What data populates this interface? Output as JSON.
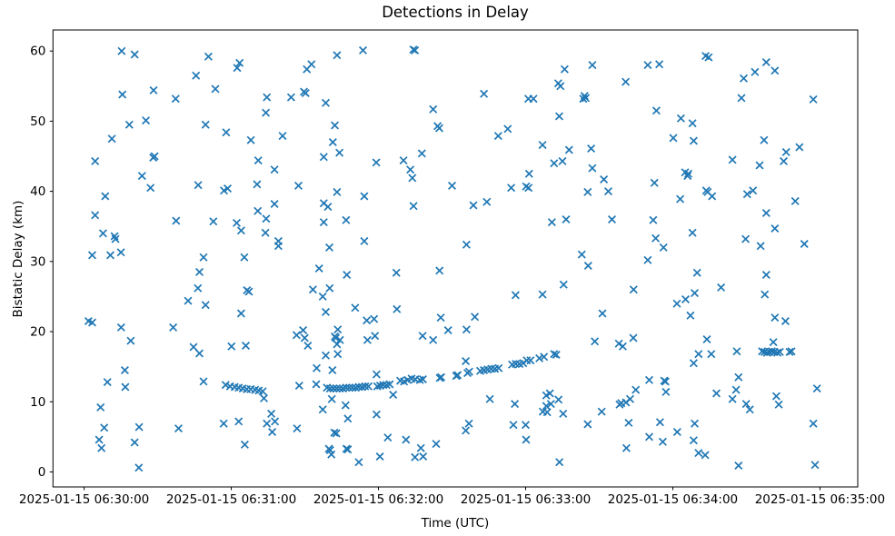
{
  "chart": {
    "title": "Detections in Delay",
    "xlabel": "Time (UTC)",
    "ylabel": "Bistatic Delay (km)"
  },
  "chart_data": {
    "type": "scatter",
    "title": "Detections in Delay",
    "xlabel": "Time (UTC)",
    "ylabel": "Bistatic Delay (km)",
    "marker": "x",
    "marker_color": "#1f77b4",
    "grid": false,
    "legend": null,
    "x_units": "seconds after 2025-01-15 06:30:00 UTC",
    "x_tick_seconds": [
      0,
      60,
      120,
      180,
      240,
      300
    ],
    "x_tick_labels": [
      "2025-01-15 06:30:00",
      "2025-01-15 06:31:00",
      "2025-01-15 06:32:00",
      "2025-01-15 06:33:00",
      "2025-01-15 06:34:00",
      "2025-01-15 06:35:00"
    ],
    "y_ticks": [
      0,
      10,
      20,
      30,
      40,
      50,
      60
    ],
    "xlim_seconds": [
      -12.7,
      315.4
    ],
    "ylim": [
      -2.14,
      63.0
    ],
    "points": [
      [
        1.8,
        21.5
      ],
      [
        3.3,
        21.3
      ],
      [
        3.3,
        30.9
      ],
      [
        4.5,
        36.6
      ],
      [
        4.5,
        44.3
      ],
      [
        6.1,
        4.6
      ],
      [
        6.7,
        9.2
      ],
      [
        7.1,
        3.4
      ],
      [
        7.7,
        34.0
      ],
      [
        8.2,
        6.3
      ],
      [
        8.6,
        39.3
      ],
      [
        9.5,
        12.8
      ],
      [
        10.7,
        30.9
      ],
      [
        11.3,
        47.5
      ],
      [
        12.4,
        33.6
      ],
      [
        12.8,
        33.2
      ],
      [
        15.0,
        31.3
      ],
      [
        15.1,
        20.6
      ],
      [
        15.3,
        60.0
      ],
      [
        15.6,
        53.8
      ],
      [
        16.6,
        14.5
      ],
      [
        16.8,
        12.1
      ],
      [
        18.4,
        49.5
      ],
      [
        19.0,
        18.7
      ],
      [
        20.6,
        4.2
      ],
      [
        20.6,
        59.5
      ],
      [
        22.3,
        0.6
      ],
      [
        22.4,
        6.4
      ],
      [
        23.6,
        42.2
      ],
      [
        25.2,
        50.1
      ],
      [
        27.1,
        40.5
      ],
      [
        28.2,
        44.8
      ],
      [
        28.7,
        45.0
      ],
      [
        28.3,
        54.4
      ],
      [
        36.3,
        20.6
      ],
      [
        37.3,
        53.2
      ],
      [
        37.5,
        35.8
      ],
      [
        38.5,
        6.2
      ],
      [
        42.4,
        24.4
      ],
      [
        44.6,
        17.8
      ],
      [
        45.6,
        56.5
      ],
      [
        46.4,
        26.2
      ],
      [
        46.5,
        40.9
      ],
      [
        47.0,
        16.9
      ],
      [
        47.0,
        28.5
      ],
      [
        48.7,
        12.9
      ],
      [
        48.7,
        30.6
      ],
      [
        49.5,
        23.8
      ],
      [
        49.5,
        49.5
      ],
      [
        50.7,
        59.2
      ],
      [
        52.7,
        35.7
      ],
      [
        53.5,
        54.6
      ],
      [
        56.9,
        6.9
      ],
      [
        57.0,
        40.1
      ],
      [
        57.9,
        48.4
      ],
      [
        58.5,
        40.4
      ],
      [
        60.1,
        17.9
      ],
      [
        62.2,
        35.5
      ],
      [
        62.4,
        57.6
      ],
      [
        63.0,
        7.2
      ],
      [
        63.4,
        58.3
      ],
      [
        64.0,
        22.6
      ],
      [
        64.0,
        34.4
      ],
      [
        65.3,
        30.6
      ],
      [
        65.5,
        3.9
      ],
      [
        65.9,
        18.0
      ],
      [
        66.4,
        25.9
      ],
      [
        67.2,
        25.7
      ],
      [
        68.0,
        47.3
      ],
      [
        57.7,
        12.4
      ],
      [
        59.5,
        12.2
      ],
      [
        61.4,
        12.1
      ],
      [
        63.0,
        12.0
      ],
      [
        64.7,
        11.9
      ],
      [
        66.3,
        11.8
      ],
      [
        67.9,
        11.8
      ],
      [
        69.7,
        11.7
      ],
      [
        71.2,
        11.6
      ],
      [
        72.8,
        11.5
      ],
      [
        73.3,
        10.5
      ],
      [
        70.5,
        41.0
      ],
      [
        70.8,
        37.2
      ],
      [
        71.0,
        44.4
      ],
      [
        73.9,
        34.1
      ],
      [
        74.1,
        51.2
      ],
      [
        74.2,
        36.1
      ],
      [
        74.5,
        53.4
      ],
      [
        77.6,
        38.2
      ],
      [
        77.6,
        43.1
      ],
      [
        79.2,
        32.2
      ],
      [
        79.2,
        32.9
      ],
      [
        80.9,
        47.9
      ],
      [
        84.4,
        53.4
      ],
      [
        87.4,
        40.8
      ],
      [
        89.6,
        54.2
      ],
      [
        90.3,
        54.0
      ],
      [
        90.8,
        57.4
      ],
      [
        92.7,
        58.1
      ],
      [
        97.7,
        35.6
      ],
      [
        97.7,
        38.3
      ],
      [
        97.7,
        44.9
      ],
      [
        98.5,
        52.6
      ],
      [
        99.4,
        37.8
      ],
      [
        100.0,
        32.0
      ],
      [
        101.4,
        47.0
      ],
      [
        102.2,
        49.4
      ],
      [
        103.1,
        39.9
      ],
      [
        103.1,
        59.4
      ],
      [
        104.1,
        45.5
      ],
      [
        106.8,
        35.9
      ],
      [
        113.7,
        60.1
      ],
      [
        114.2,
        32.9
      ],
      [
        114.2,
        39.3
      ],
      [
        119.1,
        44.1
      ],
      [
        130.2,
        44.4
      ],
      [
        133.0,
        43.1
      ],
      [
        133.8,
        41.9
      ],
      [
        134.2,
        60.2
      ],
      [
        134.9,
        60.1
      ],
      [
        134.3,
        37.9
      ],
      [
        137.7,
        45.4
      ],
      [
        142.3,
        51.7
      ],
      [
        144.1,
        49.3
      ],
      [
        144.8,
        49.0
      ],
      [
        150.0,
        40.8
      ],
      [
        74.5,
        6.9
      ],
      [
        76.3,
        8.3
      ],
      [
        76.7,
        5.7
      ],
      [
        77.8,
        7.2
      ],
      [
        86.6,
        19.5
      ],
      [
        86.8,
        6.2
      ],
      [
        89.3,
        20.2
      ],
      [
        89.9,
        19.1
      ],
      [
        91.2,
        18.0
      ],
      [
        93.3,
        26.0
      ],
      [
        94.8,
        14.8
      ],
      [
        95.8,
        29.0
      ],
      [
        97.3,
        8.9
      ],
      [
        97.3,
        25.0
      ],
      [
        98.5,
        16.6
      ],
      [
        98.5,
        22.8
      ],
      [
        99.8,
        3.3
      ],
      [
        100.3,
        3.1
      ],
      [
        100.8,
        2.5
      ],
      [
        100.1,
        26.2
      ],
      [
        101.0,
        10.4
      ],
      [
        101.2,
        14.5
      ],
      [
        102.2,
        19.3
      ],
      [
        102.6,
        19.1
      ],
      [
        103.4,
        16.8
      ],
      [
        103.4,
        20.3
      ],
      [
        103.1,
        18.2
      ],
      [
        104.3,
        18.8
      ],
      [
        102.0,
        5.6
      ],
      [
        102.8,
        5.5
      ],
      [
        106.6,
        9.5
      ],
      [
        106.9,
        3.3
      ],
      [
        107.5,
        3.2
      ],
      [
        107.1,
        28.1
      ],
      [
        107.5,
        7.6
      ],
      [
        110.5,
        23.4
      ],
      [
        112.0,
        1.4
      ],
      [
        115.2,
        21.6
      ],
      [
        115.5,
        18.8
      ],
      [
        118.2,
        21.8
      ],
      [
        118.6,
        19.4
      ],
      [
        119.2,
        8.2
      ],
      [
        119.2,
        13.9
      ],
      [
        120.6,
        2.2
      ],
      [
        123.8,
        4.9
      ],
      [
        126.0,
        11.0
      ],
      [
        127.3,
        28.4
      ],
      [
        127.5,
        23.2
      ],
      [
        131.2,
        4.6
      ],
      [
        134.9,
        2.1
      ],
      [
        137.3,
        3.4
      ],
      [
        138.0,
        19.4
      ],
      [
        138.2,
        2.2
      ],
      [
        142.3,
        18.8
      ],
      [
        143.5,
        4.0
      ],
      [
        144.9,
        28.7
      ],
      [
        145.4,
        22.0
      ],
      [
        148.4,
        20.2
      ],
      [
        87.7,
        12.3
      ],
      [
        94.6,
        12.5
      ],
      [
        99.0,
        12.0
      ],
      [
        100.3,
        11.9
      ],
      [
        101.6,
        11.9
      ],
      [
        102.9,
        11.9
      ],
      [
        104.2,
        11.9
      ],
      [
        105.5,
        11.9
      ],
      [
        106.8,
        12.0
      ],
      [
        108.1,
        12.0
      ],
      [
        109.4,
        12.0
      ],
      [
        110.7,
        12.0
      ],
      [
        112.0,
        12.1
      ],
      [
        113.3,
        12.1
      ],
      [
        114.6,
        12.2
      ],
      [
        115.9,
        12.2
      ],
      [
        119.5,
        12.2
      ],
      [
        120.7,
        12.3
      ],
      [
        122.0,
        12.4
      ],
      [
        123.3,
        12.4
      ],
      [
        124.6,
        12.5
      ],
      [
        128.9,
        13.0
      ],
      [
        130.4,
        12.9
      ],
      [
        131.9,
        13.1
      ],
      [
        133.5,
        13.3
      ],
      [
        135.0,
        13.2
      ],
      [
        136.9,
        13.1
      ],
      [
        138.1,
        13.2
      ],
      [
        145.0,
        13.4
      ],
      [
        145.6,
        13.5
      ],
      [
        151.7,
        13.7
      ],
      [
        152.3,
        13.8
      ],
      [
        155.6,
        15.8
      ],
      [
        156.3,
        14.1
      ],
      [
        157.0,
        14.3
      ],
      [
        161.5,
        14.4
      ],
      [
        163.0,
        14.5
      ],
      [
        164.5,
        14.6
      ],
      [
        166.0,
        14.7
      ],
      [
        167.5,
        14.7
      ],
      [
        169.0,
        14.8
      ],
      [
        174.5,
        15.3
      ],
      [
        176.0,
        15.4
      ],
      [
        177.5,
        15.4
      ],
      [
        179.0,
        15.5
      ],
      [
        180.5,
        15.9
      ],
      [
        182.0,
        15.9
      ],
      [
        185.6,
        16.2
      ],
      [
        187.5,
        16.4
      ],
      [
        191.6,
        16.8
      ],
      [
        192.5,
        16.7
      ],
      [
        155.9,
        32.4
      ],
      [
        158.7,
        38.0
      ],
      [
        163.0,
        53.9
      ],
      [
        164.2,
        38.5
      ],
      [
        168.8,
        47.9
      ],
      [
        172.7,
        48.9
      ],
      [
        174.1,
        40.5
      ],
      [
        180.2,
        40.7
      ],
      [
        181.2,
        40.5
      ],
      [
        181.1,
        53.2
      ],
      [
        183.2,
        53.2
      ],
      [
        181.4,
        42.5
      ],
      [
        186.9,
        46.6
      ],
      [
        190.7,
        35.6
      ],
      [
        191.6,
        44.0
      ],
      [
        193.3,
        55.4
      ],
      [
        194.2,
        55.0
      ],
      [
        193.7,
        50.7
      ],
      [
        195.0,
        44.3
      ],
      [
        195.9,
        57.4
      ],
      [
        196.5,
        36.0
      ],
      [
        197.7,
        45.9
      ],
      [
        202.9,
        31.0
      ],
      [
        203.5,
        53.2
      ],
      [
        204.5,
        53.3
      ],
      [
        204.0,
        53.6
      ],
      [
        205.3,
        39.9
      ],
      [
        206.7,
        46.1
      ],
      [
        207.2,
        43.3
      ],
      [
        207.2,
        58.0
      ],
      [
        211.9,
        41.7
      ],
      [
        213.7,
        40.0
      ],
      [
        215.2,
        36.0
      ],
      [
        220.8,
        55.6
      ],
      [
        229.8,
        58.0
      ],
      [
        232.0,
        35.9
      ],
      [
        232.5,
        41.2
      ],
      [
        233.0,
        33.3
      ],
      [
        233.3,
        51.5
      ],
      [
        234.5,
        58.1
      ],
      [
        155.6,
        5.9
      ],
      [
        155.9,
        20.3
      ],
      [
        156.9,
        6.9
      ],
      [
        159.3,
        22.1
      ],
      [
        165.4,
        10.4
      ],
      [
        175.0,
        6.7
      ],
      [
        175.6,
        9.7
      ],
      [
        175.9,
        25.2
      ],
      [
        180.0,
        6.7
      ],
      [
        180.2,
        4.6
      ],
      [
        186.9,
        25.3
      ],
      [
        187.0,
        8.6
      ],
      [
        188.4,
        9.4
      ],
      [
        188.4,
        10.9
      ],
      [
        188.8,
        8.5
      ],
      [
        189.9,
        11.2
      ],
      [
        190.3,
        9.7
      ],
      [
        193.4,
        10.3
      ],
      [
        193.8,
        1.4
      ],
      [
        195.3,
        8.3
      ],
      [
        195.5,
        26.7
      ],
      [
        205.3,
        6.8
      ],
      [
        205.5,
        29.4
      ],
      [
        208.2,
        18.6
      ],
      [
        211.0,
        8.6
      ],
      [
        211.3,
        22.6
      ],
      [
        218.3,
        9.6
      ],
      [
        219.0,
        9.8
      ],
      [
        218.0,
        18.3
      ],
      [
        219.6,
        17.9
      ],
      [
        220.9,
        9.9
      ],
      [
        221.1,
        3.4
      ],
      [
        222.0,
        7.0
      ],
      [
        222.6,
        10.4
      ],
      [
        223.9,
        19.1
      ],
      [
        224.0,
        26.0
      ],
      [
        224.9,
        11.7
      ],
      [
        229.8,
        30.2
      ],
      [
        230.4,
        5.0
      ],
      [
        230.4,
        13.1
      ],
      [
        234.8,
        7.1
      ],
      [
        235.9,
        4.3
      ],
      [
        236.2,
        32.0
      ],
      [
        236.5,
        13.0
      ],
      [
        237.0,
        12.9
      ],
      [
        237.2,
        11.4
      ],
      [
        240.2,
        47.6
      ],
      [
        241.7,
        24.0
      ],
      [
        241.8,
        5.7
      ],
      [
        243.0,
        38.9
      ],
      [
        243.3,
        50.4
      ],
      [
        245.0,
        42.7
      ],
      [
        245.2,
        24.6
      ],
      [
        246.0,
        42.2
      ],
      [
        246.3,
        42.5
      ],
      [
        247.2,
        22.3
      ],
      [
        248.0,
        34.1
      ],
      [
        248.0,
        49.7
      ],
      [
        248.5,
        4.5
      ],
      [
        248.5,
        15.5
      ],
      [
        248.5,
        47.2
      ],
      [
        248.9,
        6.9
      ],
      [
        248.9,
        25.5
      ],
      [
        249.9,
        28.4
      ],
      [
        250.5,
        2.7
      ],
      [
        250.5,
        16.8
      ],
      [
        253.2,
        2.4
      ],
      [
        253.4,
        59.3
      ],
      [
        253.6,
        40.1
      ],
      [
        253.9,
        18.9
      ],
      [
        254.2,
        39.9
      ],
      [
        254.6,
        59.1
      ],
      [
        255.7,
        16.8
      ],
      [
        256.0,
        39.3
      ],
      [
        257.8,
        11.2
      ],
      [
        259.7,
        26.3
      ],
      [
        264.3,
        10.4
      ],
      [
        264.3,
        44.5
      ],
      [
        265.8,
        11.7
      ],
      [
        266.1,
        17.2
      ],
      [
        266.8,
        0.9
      ],
      [
        266.8,
        13.5
      ],
      [
        268.0,
        53.3
      ],
      [
        268.9,
        56.1
      ],
      [
        269.7,
        33.2
      ],
      [
        269.9,
        9.7
      ],
      [
        270.3,
        39.6
      ],
      [
        271.4,
        8.9
      ],
      [
        272.7,
        40.1
      ],
      [
        273.5,
        57.0
      ],
      [
        275.4,
        43.7
      ],
      [
        275.8,
        32.2
      ],
      [
        276.4,
        17.2
      ],
      [
        277.4,
        17.1
      ],
      [
        278.4,
        17.0
      ],
      [
        279.4,
        17.1
      ],
      [
        280.4,
        17.2
      ],
      [
        281.4,
        17.1
      ],
      [
        282.6,
        17.0
      ],
      [
        283.6,
        17.1
      ],
      [
        287.6,
        17.1
      ],
      [
        288.4,
        17.2
      ],
      [
        277.2,
        47.3
      ],
      [
        277.5,
        25.3
      ],
      [
        278.1,
        28.1
      ],
      [
        278.1,
        36.9
      ],
      [
        278.1,
        58.4
      ],
      [
        281.0,
        18.5
      ],
      [
        281.6,
        22.0
      ],
      [
        281.6,
        34.7
      ],
      [
        281.6,
        57.2
      ],
      [
        282.2,
        10.8
      ],
      [
        283.2,
        9.6
      ],
      [
        285.2,
        44.3
      ],
      [
        285.9,
        21.5
      ],
      [
        286.2,
        45.6
      ],
      [
        289.9,
        38.6
      ],
      [
        291.6,
        46.3
      ],
      [
        293.6,
        32.5
      ],
      [
        297.3,
        6.9
      ],
      [
        297.3,
        53.1
      ],
      [
        298.0,
        1.0
      ],
      [
        298.8,
        11.9
      ]
    ]
  }
}
